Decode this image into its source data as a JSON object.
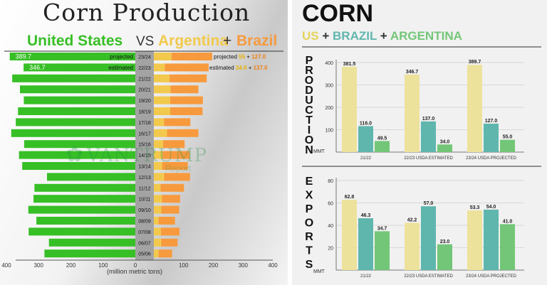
{
  "left_panel": {
    "title": "Corn Production",
    "us_label": "United States",
    "vs_label": "VS",
    "argentina_label": "Argentina",
    "plus": "+",
    "brazil_label": "Brazil",
    "x_axis_label": "(million metric tons)",
    "watermark_name": "VANTRUMP",
    "watermark_sub": "Report",
    "colors": {
      "us": "#37bf26",
      "argentina": "#f2c94c",
      "brazil": "#f79a3e",
      "title": "#222222"
    }
  },
  "right_panel": {
    "title": "CORN",
    "subtitle_us": "US",
    "subtitle_plus": "+",
    "subtitle_brazil": "BRAZIL",
    "subtitle_argentina": "ARGENTINA",
    "production_word": "PRODUCTION",
    "exports_word": "EXPORTS",
    "unit_label": "MMT",
    "colors": {
      "us": "#ede29b",
      "brazil": "#5fb6ad",
      "argentina": "#73c677"
    }
  },
  "chart_data": [
    {
      "type": "bar",
      "title": "Corn Production",
      "orientation": "horizontal-diverging",
      "xlabel": "(million metric tons)",
      "xlim_us": [
        0,
        400
      ],
      "xlim_sa": [
        0,
        400
      ],
      "left_ticks": [
        "400",
        "300",
        "200",
        "100",
        "0"
      ],
      "right_ticks": [
        "100",
        "200",
        "300",
        "400"
      ],
      "categories": [
        "23/24",
        "22/23",
        "21/22",
        "20/21",
        "19/20",
        "18/19",
        "17/18",
        "16/17",
        "15/16",
        "14/15",
        "13/14",
        "12/13",
        "11/12",
        "10/11",
        "09/10",
        "08/09",
        "07/08",
        "06/07",
        "05/06"
      ],
      "series": [
        {
          "name": "United States",
          "values": [
            389.7,
            346.7,
            382,
            358,
            346,
            364,
            371,
            385,
            345,
            361,
            351,
            274,
            313,
            316,
            332,
            307,
            331,
            268,
            282
          ]
        },
        {
          "name": "Argentina",
          "values": [
            55,
            34.0,
            49,
            52,
            51,
            51,
            32,
            41,
            29,
            27,
            26,
            32,
            21,
            25,
            23,
            15,
            22,
            23,
            15
          ]
        },
        {
          "name": "Brazil",
          "values": [
            127.0,
            137.0,
            116,
            87,
            102,
            101,
            82,
            98,
            67,
            85,
            80,
            81,
            73,
            57,
            56,
            51,
            58,
            51,
            42
          ]
        }
      ],
      "annotations": {
        "us_projected_value": "389.7",
        "us_projected_tag": "projected",
        "us_estimated_value": "346.7",
        "us_estimated_tag": "estimated",
        "sa_projected_tag": "projected",
        "sa_projected_arg": "55",
        "sa_projected_plus": "+",
        "sa_projected_brazil": "127.0",
        "sa_estimated_tag": "estimated",
        "sa_estimated_arg": "34.0",
        "sa_estimated_plus": "+",
        "sa_estimated_brazil": "137.0"
      }
    },
    {
      "type": "bar",
      "title": "PRODUCTION",
      "ylabel": "MMT",
      "ylim": [
        0,
        400
      ],
      "yticks": [
        "400",
        "300",
        "200",
        "100"
      ],
      "categories": [
        "21/22",
        "22/23 USDA ESTIMATED",
        "23/24 USDA PROJECTED"
      ],
      "series": [
        {
          "name": "US",
          "values": [
            381.5,
            346.7,
            389.7
          ]
        },
        {
          "name": "BRAZIL",
          "values": [
            116.0,
            137.0,
            127.0
          ]
        },
        {
          "name": "ARGENTINA",
          "values": [
            49.5,
            34.0,
            55.0
          ]
        }
      ],
      "value_labels": [
        [
          "381.5",
          "116.0",
          "49.5"
        ],
        [
          "346.7",
          "137.0",
          "34.0"
        ],
        [
          "389.7",
          "127.0",
          "55.0"
        ]
      ]
    },
    {
      "type": "bar",
      "title": "EXPORTS",
      "ylabel": "MMT",
      "ylim": [
        0,
        80
      ],
      "yticks": [
        "80",
        "60",
        "40",
        "20"
      ],
      "categories": [
        "21/22",
        "22/23 USDA ESTIMATED",
        "23/24 USDA PROJECTED"
      ],
      "series": [
        {
          "name": "US",
          "values": [
            62.8,
            42.2,
            53.3
          ]
        },
        {
          "name": "BRAZIL",
          "values": [
            46.3,
            57.0,
            54.0
          ]
        },
        {
          "name": "ARGENTINA",
          "values": [
            34.7,
            23.0,
            41.0
          ]
        }
      ],
      "value_labels": [
        [
          "62.8",
          "46.3",
          "34.7"
        ],
        [
          "42.2",
          "57.0",
          "23.0"
        ],
        [
          "53.3",
          "54.0",
          "41.0"
        ]
      ]
    }
  ]
}
